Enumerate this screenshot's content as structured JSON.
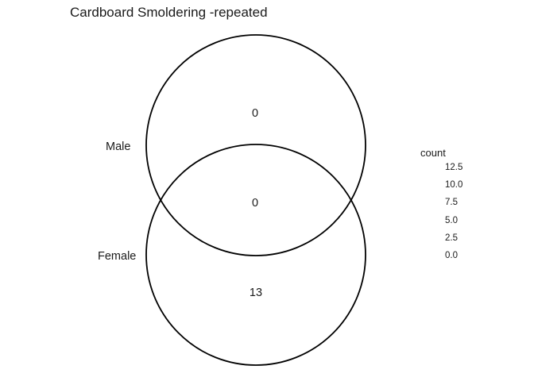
{
  "title": "Cardboard Smoldering -repeated",
  "sets": [
    {
      "name": "Male"
    },
    {
      "name": "Female"
    }
  ],
  "regions": {
    "male_only": "0",
    "intersection": "0",
    "female_only": "13"
  },
  "legend": {
    "title": "count",
    "items": [
      "12.5",
      "10.0",
      "7.5",
      "5.0",
      "2.5",
      "0.0"
    ]
  },
  "colors": {
    "circle_stroke": "#000000",
    "background": "#ffffff",
    "text": "#1a1a1a"
  }
}
